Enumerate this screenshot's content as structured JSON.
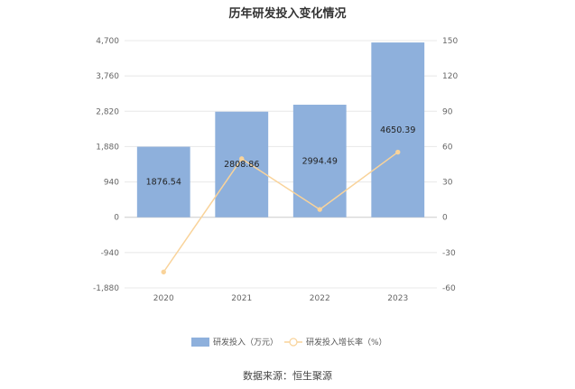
{
  "chart_data": {
    "type": "bar",
    "title": "历年研发投入变化情况",
    "categories": [
      "2020",
      "2021",
      "2022",
      "2023"
    ],
    "series": [
      {
        "name": "研发投入（万元）",
        "type": "bar",
        "axis": "left",
        "color": "#8eb0dc",
        "values": [
          1876.54,
          2808.86,
          2994.49,
          4650.39
        ],
        "labels": [
          "1876.54",
          "2808.86",
          "2994.49",
          "4650.39"
        ]
      },
      {
        "name": "研发投入增长率（%）",
        "type": "line",
        "axis": "right",
        "color": "#f9d39a",
        "values": [
          -46.5,
          49.7,
          6.6,
          55.3
        ]
      }
    ],
    "y_left": {
      "ylim": [
        -1880,
        4700
      ],
      "ticks": [
        "4,700",
        "3,760",
        "2,820",
        "1,880",
        "940",
        "0",
        "-940",
        "-1,880"
      ],
      "tick_values": [
        4700,
        3760,
        2820,
        1880,
        940,
        0,
        -940,
        -1880
      ]
    },
    "y_right": {
      "ylim": [
        -60,
        150
      ],
      "ticks": [
        "150",
        "120",
        "90",
        "60",
        "30",
        "0",
        "-30",
        "-60"
      ],
      "tick_values": [
        150,
        120,
        90,
        60,
        30,
        0,
        -30,
        -60
      ]
    },
    "grid": true,
    "legend_position": "bottom"
  },
  "source": "数据来源：恒生聚源"
}
